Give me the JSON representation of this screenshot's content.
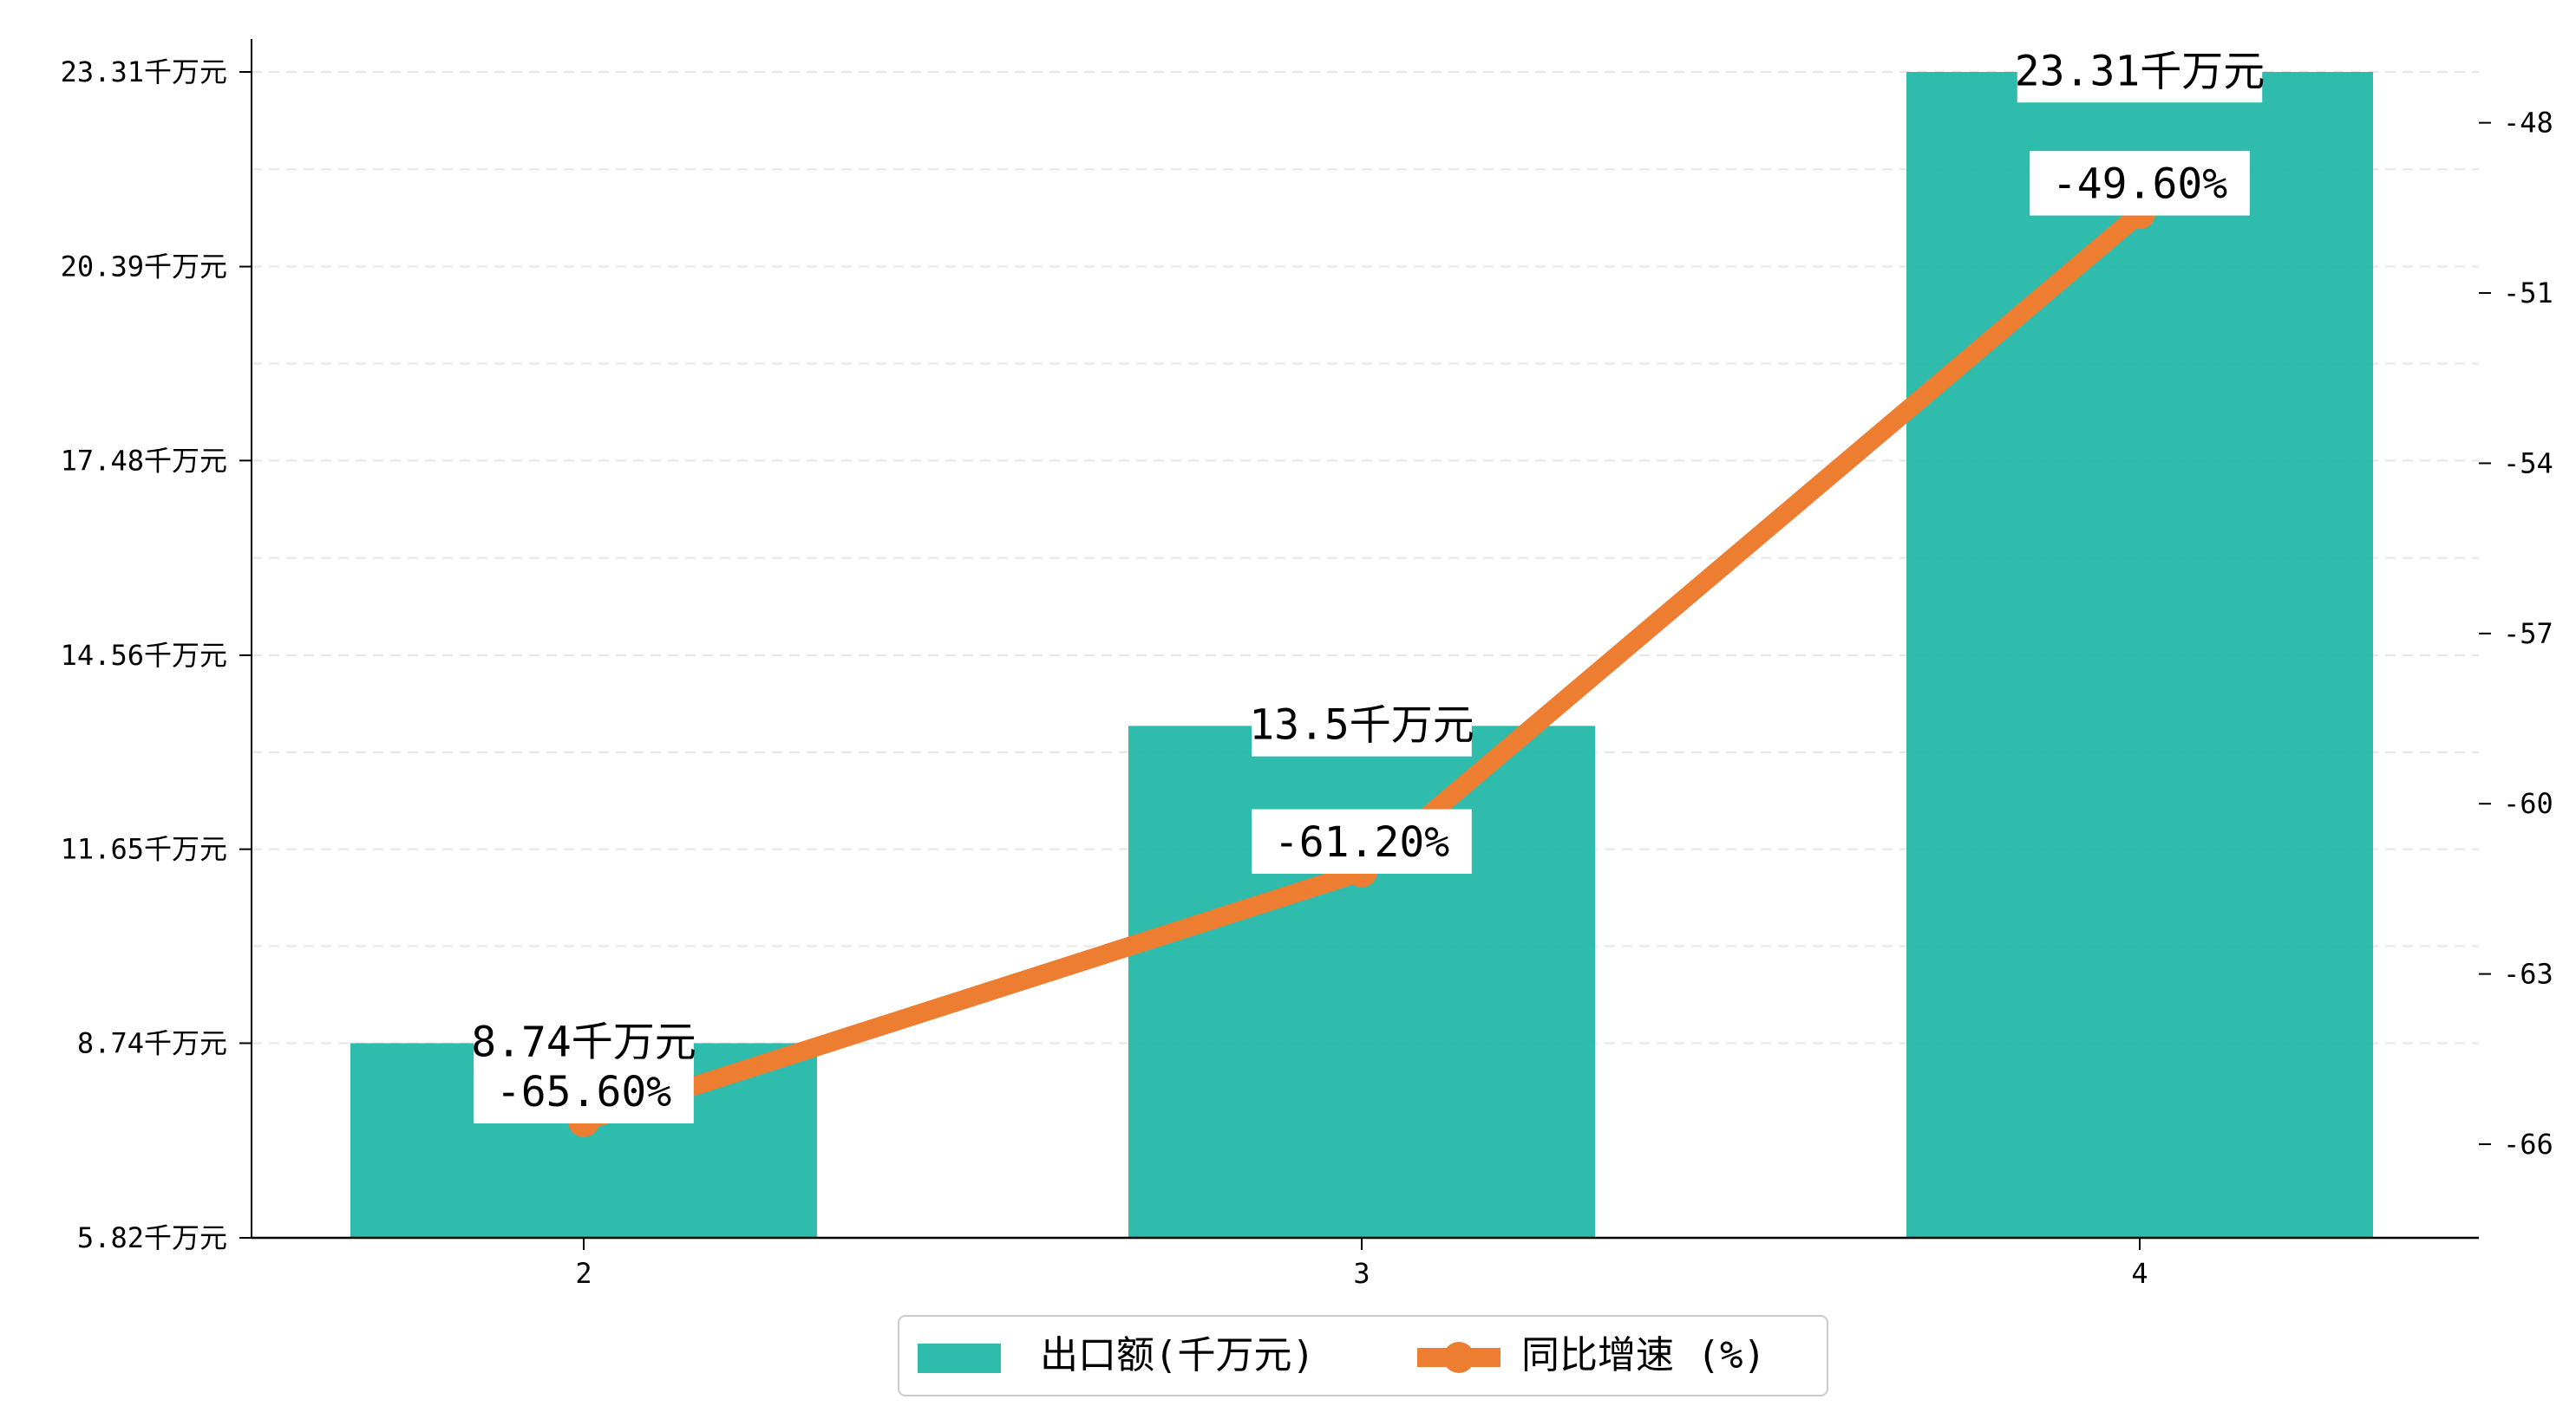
{
  "chart_data": {
    "type": "bar",
    "categories": [
      "2",
      "3",
      "4"
    ],
    "series": [
      {
        "name": "出口额(千万元)",
        "type": "bar",
        "axis": "left",
        "values": [
          8.74,
          13.5,
          23.31
        ],
        "value_labels": [
          "8.74千万元",
          "13.5千万元",
          "23.31千万元"
        ],
        "color": "#1ab5a3"
      },
      {
        "name": "同比增速 (%)",
        "type": "line",
        "axis": "right",
        "values": [
          -65.6,
          -61.2,
          -49.6
        ],
        "value_labels": [
          "-65.60%",
          "-61.20%",
          "-49.60%"
        ],
        "color": "#ed7d31"
      }
    ],
    "y_left": {
      "ticks": [
        5.82,
        8.74,
        11.65,
        14.56,
        17.48,
        20.39,
        23.31
      ],
      "tick_labels": [
        "5.82千万元",
        "8.74千万元",
        "11.65千万元",
        "14.56千万元",
        "17.48千万元",
        "20.39千万元",
        "23.31千万元"
      ],
      "range": [
        5.82,
        23.31
      ]
    },
    "y_right": {
      "ticks": [
        -66,
        -63,
        -60,
        -57,
        -54,
        -51,
        -48
      ],
      "tick_labels": [
        "-66",
        "-63",
        "-60",
        "-57",
        "-54",
        "-51",
        "-48"
      ],
      "range": [
        -67.65,
        -46.6
      ]
    },
    "grid": "horizontal-dashed",
    "legend": "bottom-center"
  }
}
